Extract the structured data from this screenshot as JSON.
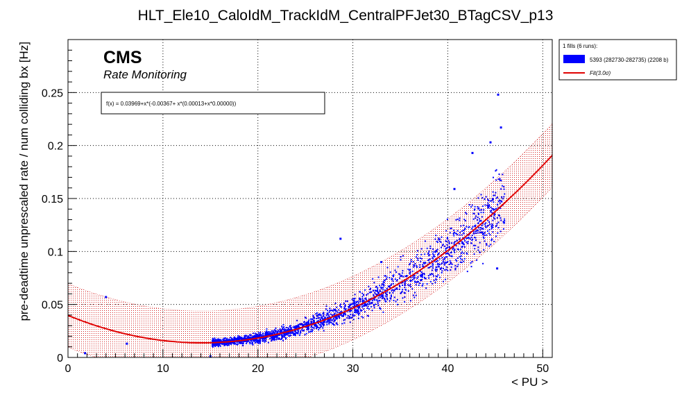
{
  "chart_data": {
    "type": "scatter",
    "title": "HLT_Ele10_CaloIdM_TrackIdM_CentralPFJet30_BTagCSV_p13",
    "xlabel": "< PU >",
    "ylabel": "pre-deadtime unprescaled rate / num colliding bx [Hz]",
    "xlim": [
      0,
      51
    ],
    "ylim": [
      0,
      0.3
    ],
    "x_ticks": [
      "0",
      "10",
      "20",
      "30",
      "40",
      "50"
    ],
    "y_ticks": [
      "0",
      "0.05",
      "0.1",
      "0.15",
      "0.2",
      "0.25"
    ],
    "grid": true,
    "legend_position": "outside-top-right",
    "cms_label": "CMS",
    "cms_sublabel": "Rate Monitoring",
    "fit_formula_text": "f(x) = 0.03969+x*(-0.00367+ x*(0.00013+x*0.00000))",
    "fit": {
      "a0": 0.03969,
      "a1": -0.00367,
      "a2": 0.00013,
      "a3": 0.0,
      "band_halfwidth": 0.03,
      "x_range": [
        0,
        51
      ]
    },
    "legend": {
      "header": "1 fills (6 runs):",
      "entries": [
        {
          "label": "5393 (282730-282735) (2208 b)",
          "color": "#0000ff"
        },
        {
          "label": "Fit(3.0σ)",
          "color": "#e00000"
        }
      ]
    },
    "series": [
      {
        "name": "5393 (282730-282735) (2208 b)",
        "color": "#0000ff",
        "main_cloud": {
          "x_range": [
            15.2,
            46
          ],
          "count": 2208,
          "spread_fraction": 0.12
        },
        "outliers": [
          {
            "x": 4.0,
            "y": 0.057
          },
          {
            "x": 1.8,
            "y": 0.004
          },
          {
            "x": 6.2,
            "y": 0.013
          },
          {
            "x": 28.7,
            "y": 0.112
          },
          {
            "x": 45.3,
            "y": 0.248
          },
          {
            "x": 45.6,
            "y": 0.217
          },
          {
            "x": 44.5,
            "y": 0.203
          },
          {
            "x": 42.6,
            "y": 0.193
          },
          {
            "x": 45.2,
            "y": 0.084
          },
          {
            "x": 40.7,
            "y": 0.159
          },
          {
            "x": 33.0,
            "y": 0.09
          },
          {
            "x": 15.0,
            "y": 0.001
          }
        ]
      }
    ]
  }
}
